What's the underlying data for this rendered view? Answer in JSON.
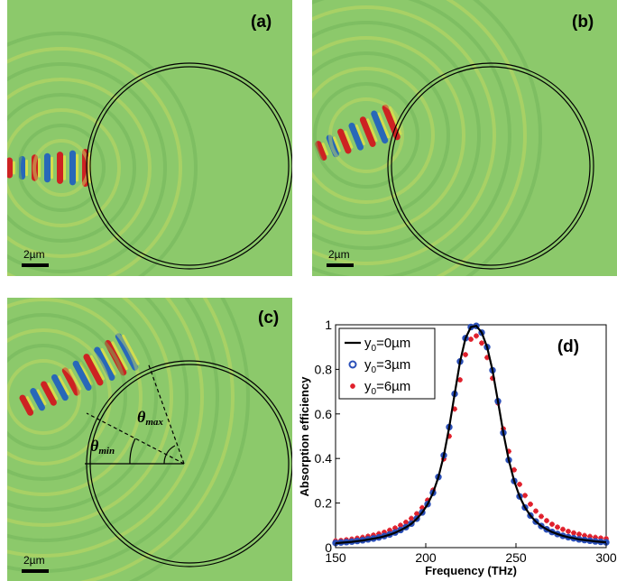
{
  "panels": {
    "a": {
      "label": "(a)",
      "scale": "2µm"
    },
    "b": {
      "label": "(b)",
      "scale": "2µm"
    },
    "c": {
      "label": "(c)",
      "scale": "2µm",
      "theta_min": "θmin",
      "theta_max": "θmax"
    },
    "d": {
      "label": "(d)"
    }
  },
  "colors": {
    "field_background": "#8cc96b",
    "wave_red": "#d3141c",
    "wave_blue": "#1f5fbf",
    "wave_yellow": "#f2e640",
    "ring": "#000000",
    "series_0": "#000000",
    "series_3": "#2a4fb8",
    "series_6": "#e0202c"
  },
  "chart_data": {
    "type": "scatter",
    "title": "",
    "xlabel": "Frequency (THz)",
    "ylabel": "Absorption efficiency",
    "xlim": [
      150,
      300
    ],
    "ylim": [
      0,
      1
    ],
    "xticks": [
      "150",
      "200",
      "250",
      "300"
    ],
    "yticks": [
      "0",
      "0.2",
      "0.4",
      "0.6",
      "0.8",
      "1"
    ],
    "grid": false,
    "legend_position": "top-left",
    "x": [
      150,
      153,
      156,
      159,
      162,
      165,
      168,
      171,
      174,
      177,
      180,
      183,
      186,
      189,
      192,
      195,
      198,
      201,
      204,
      207,
      210,
      213,
      216,
      219,
      222,
      225,
      228,
      231,
      234,
      237,
      240,
      243,
      246,
      249,
      252,
      255,
      258,
      261,
      264,
      267,
      270,
      273,
      276,
      279,
      282,
      285,
      288,
      291,
      294,
      297,
      300
    ],
    "series": [
      {
        "name": "y0=0µm",
        "legend_main": "y",
        "legend_sub": "0",
        "legend_rest": "=0µm",
        "marker": "line",
        "values": [
          0.02,
          0.022,
          0.024,
          0.026,
          0.029,
          0.032,
          0.036,
          0.04,
          0.045,
          0.051,
          0.058,
          0.067,
          0.078,
          0.091,
          0.107,
          0.129,
          0.157,
          0.194,
          0.245,
          0.316,
          0.413,
          0.54,
          0.689,
          0.834,
          0.939,
          0.99,
          0.995,
          0.965,
          0.9,
          0.796,
          0.657,
          0.515,
          0.393,
          0.299,
          0.23,
          0.18,
          0.144,
          0.117,
          0.097,
          0.082,
          0.07,
          0.061,
          0.053,
          0.047,
          0.042,
          0.037,
          0.034,
          0.031,
          0.028,
          0.026,
          0.024
        ]
      },
      {
        "name": "y0=3µm",
        "legend_main": "y",
        "legend_sub": "0",
        "legend_rest": "=3µm",
        "marker": "circle",
        "values": [
          0.021,
          0.023,
          0.025,
          0.027,
          0.03,
          0.033,
          0.037,
          0.041,
          0.046,
          0.052,
          0.059,
          0.068,
          0.079,
          0.092,
          0.108,
          0.13,
          0.158,
          0.195,
          0.246,
          0.317,
          0.414,
          0.541,
          0.69,
          0.835,
          0.94,
          0.99,
          0.995,
          0.965,
          0.9,
          0.796,
          0.657,
          0.515,
          0.393,
          0.299,
          0.23,
          0.18,
          0.144,
          0.117,
          0.097,
          0.082,
          0.07,
          0.061,
          0.053,
          0.047,
          0.042,
          0.037,
          0.034,
          0.031,
          0.028,
          0.026,
          0.024
        ]
      },
      {
        "name": "y0=6µm",
        "legend_main": "y",
        "legend_sub": "0",
        "legend_rest": "=6µm",
        "marker": "star",
        "values": [
          0.03,
          0.032,
          0.035,
          0.038,
          0.042,
          0.046,
          0.051,
          0.056,
          0.062,
          0.069,
          0.078,
          0.088,
          0.1,
          0.114,
          0.131,
          0.152,
          0.179,
          0.213,
          0.258,
          0.318,
          0.398,
          0.5,
          0.622,
          0.753,
          0.866,
          0.935,
          0.95,
          0.918,
          0.853,
          0.76,
          0.649,
          0.533,
          0.432,
          0.349,
          0.284,
          0.234,
          0.195,
          0.164,
          0.14,
          0.121,
          0.105,
          0.092,
          0.082,
          0.073,
          0.066,
          0.06,
          0.054,
          0.05,
          0.046,
          0.043,
          0.04
        ]
      }
    ]
  }
}
